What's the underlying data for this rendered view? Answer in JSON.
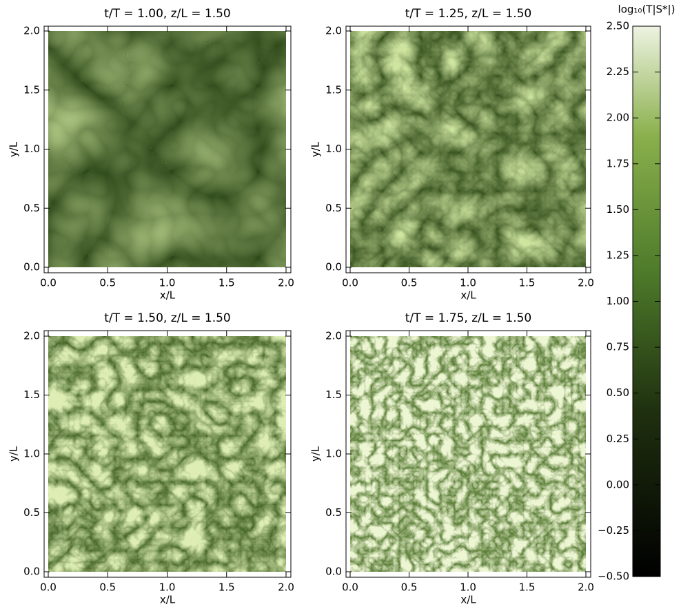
{
  "chart_data": [
    {
      "type": "heatmap",
      "title": "t/T = 1.00, z/L = 1.50",
      "xlabel": "x/L",
      "ylabel": "y/L",
      "xlim": [
        0,
        2
      ],
      "ylim": [
        0,
        2
      ],
      "xticks": [
        {
          "value": 0,
          "label": "0.0"
        },
        {
          "value": 0.5,
          "label": "0.5"
        },
        {
          "value": 1,
          "label": "1.0"
        },
        {
          "value": 1.5,
          "label": "1.5"
        },
        {
          "value": 2,
          "label": "2.0"
        }
      ],
      "yticks": [
        {
          "value": 0,
          "label": "0.0"
        },
        {
          "value": 0.5,
          "label": "0.5"
        },
        {
          "value": 1,
          "label": "1.0"
        },
        {
          "value": 1.5,
          "label": "1.5"
        },
        {
          "value": 2,
          "label": "2.0"
        }
      ]
    },
    {
      "type": "heatmap",
      "title": "t/T = 1.25, z/L = 1.50",
      "xlabel": "x/L",
      "ylabel": "y/L",
      "xlim": [
        0,
        2
      ],
      "ylim": [
        0,
        2
      ],
      "xticks": [
        {
          "value": 0,
          "label": "0.0"
        },
        {
          "value": 0.5,
          "label": "0.5"
        },
        {
          "value": 1,
          "label": "1.0"
        },
        {
          "value": 1.5,
          "label": "1.5"
        },
        {
          "value": 2,
          "label": "2.0"
        }
      ],
      "yticks": [
        {
          "value": 0,
          "label": "0.0"
        },
        {
          "value": 0.5,
          "label": "0.5"
        },
        {
          "value": 1,
          "label": "1.0"
        },
        {
          "value": 1.5,
          "label": "1.5"
        },
        {
          "value": 2,
          "label": "2.0"
        }
      ]
    },
    {
      "type": "heatmap",
      "title": "t/T = 1.50, z/L = 1.50",
      "xlabel": "x/L",
      "ylabel": "y/L",
      "xlim": [
        0,
        2
      ],
      "ylim": [
        0,
        2
      ],
      "xticks": [
        {
          "value": 0,
          "label": "0.0"
        },
        {
          "value": 0.5,
          "label": "0.5"
        },
        {
          "value": 1,
          "label": "1.0"
        },
        {
          "value": 1.5,
          "label": "1.5"
        },
        {
          "value": 2,
          "label": "2.0"
        }
      ],
      "yticks": [
        {
          "value": 0,
          "label": "0.0"
        },
        {
          "value": 0.5,
          "label": "0.5"
        },
        {
          "value": 1,
          "label": "1.0"
        },
        {
          "value": 1.5,
          "label": "1.5"
        },
        {
          "value": 2,
          "label": "2.0"
        }
      ]
    },
    {
      "type": "heatmap",
      "title": "t/T = 1.75, z/L = 1.50",
      "xlabel": "x/L",
      "ylabel": "y/L",
      "xlim": [
        0,
        2
      ],
      "ylim": [
        0,
        2
      ],
      "xticks": [
        {
          "value": 0,
          "label": "0.0"
        },
        {
          "value": 0.5,
          "label": "0.5"
        },
        {
          "value": 1,
          "label": "1.0"
        },
        {
          "value": 1.5,
          "label": "1.5"
        },
        {
          "value": 2,
          "label": "2.0"
        }
      ],
      "yticks": [
        {
          "value": 0,
          "label": "0.0"
        },
        {
          "value": 0.5,
          "label": "0.5"
        },
        {
          "value": 1,
          "label": "1.0"
        },
        {
          "value": 1.5,
          "label": "1.5"
        },
        {
          "value": 2,
          "label": "2.0"
        }
      ]
    },
    {
      "type": "colorbar",
      "title": "log₁₀(T|S*|)",
      "ylim": [
        -0.5,
        2.5
      ],
      "yticks": [
        {
          "value": -0.5,
          "label": "−0.50"
        },
        {
          "value": -0.25,
          "label": "−0.25"
        },
        {
          "value": 0,
          "label": "0.00"
        },
        {
          "value": 0.25,
          "label": "0.25"
        },
        {
          "value": 0.5,
          "label": "0.50"
        },
        {
          "value": 0.75,
          "label": "0.75"
        },
        {
          "value": 1,
          "label": "1.00"
        },
        {
          "value": 1.25,
          "label": "1.25"
        },
        {
          "value": 1.5,
          "label": "1.50"
        },
        {
          "value": 1.75,
          "label": "1.75"
        },
        {
          "value": 2,
          "label": "2.00"
        },
        {
          "value": 2.25,
          "label": "2.25"
        },
        {
          "value": 2.5,
          "label": "2.50"
        }
      ]
    }
  ]
}
